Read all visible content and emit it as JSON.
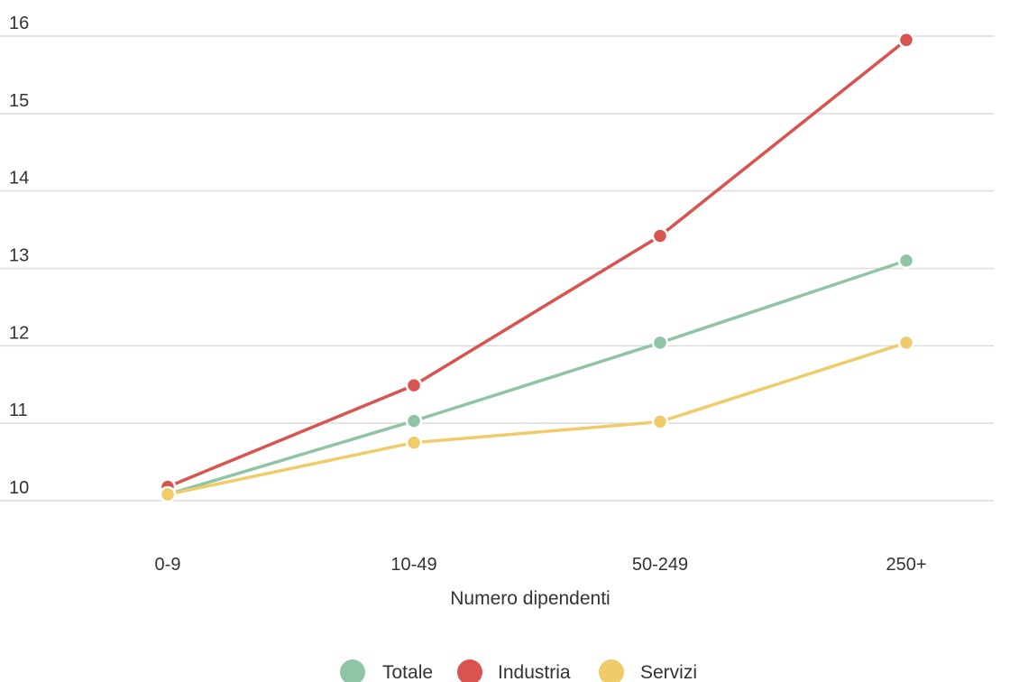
{
  "chart_data": {
    "type": "line",
    "title": "",
    "xlabel": "Numero dipendenti",
    "ylabel": "",
    "categories": [
      "0-9",
      "10-49",
      "50-249",
      "250+"
    ],
    "ylim": [
      10,
      16
    ],
    "yticks": [
      10,
      11,
      12,
      13,
      14,
      15,
      16
    ],
    "grid": true,
    "legend_position": "bottom",
    "series": [
      {
        "name": "Totale",
        "color": "#8fc4a4",
        "values": [
          10.08,
          11.03,
          12.04,
          13.1
        ]
      },
      {
        "name": "Industria",
        "color": "#d9534f",
        "values": [
          10.18,
          11.49,
          13.42,
          15.95
        ]
      },
      {
        "name": "Servizi",
        "color": "#f0cb69",
        "values": [
          10.08,
          10.75,
          11.02,
          12.04
        ]
      }
    ]
  }
}
